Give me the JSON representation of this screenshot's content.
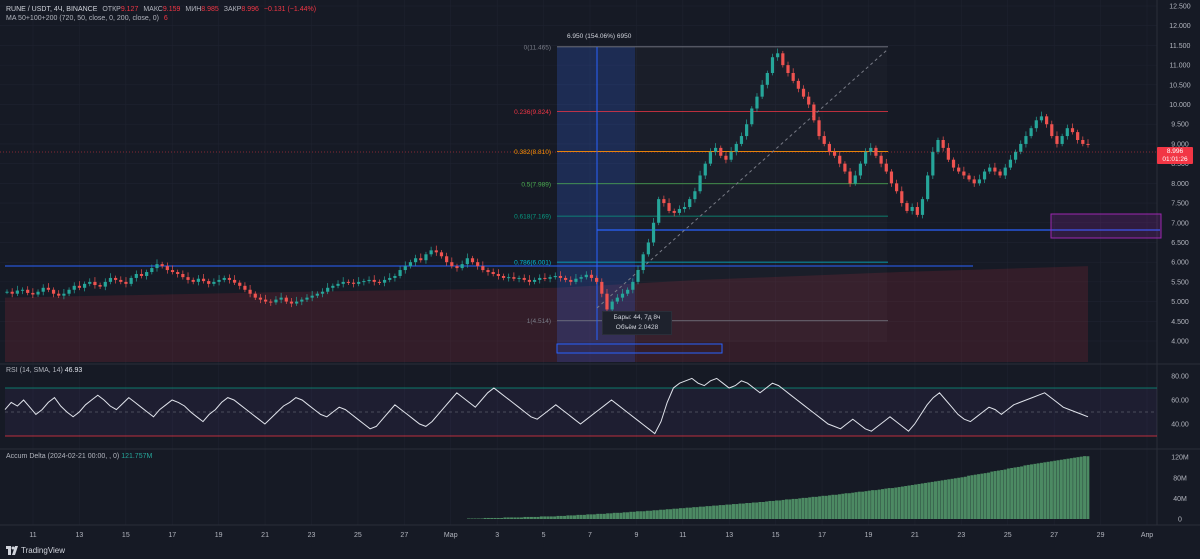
{
  "legend": {
    "pair": "RUNE / USDT, 4Ч, BINANCE",
    "open_label": "ОТКР",
    "open_value": "9.127",
    "high_label": "МАКС",
    "high_value": "9.159",
    "low_label": "МИН",
    "low_value": "8.985",
    "close_label": "ЗАКР",
    "close_value": "8.996",
    "change": "−0.131 (−1.44%)",
    "ma_label": "MA 50+100+200 (720, 50, close, 0, 200, close, 0)",
    "ma_extra": "6"
  },
  "price_axis": {
    "ticks": [
      "12.500",
      "12.000",
      "11.500",
      "11.000",
      "10.500",
      "10.000",
      "9.500",
      "9.000",
      "8.500",
      "8.000",
      "7.500",
      "7.000",
      "6.500",
      "6.000",
      "5.500",
      "5.000",
      "4.500",
      "4.000"
    ],
    "current_price": "8.996",
    "countdown": "01:01:26"
  },
  "rsi": {
    "label": "RSI (14, SMA, 14)",
    "value": "46.93",
    "ticks": [
      "80.00",
      "60.00",
      "40.00"
    ],
    "upper": 70,
    "lower": 30,
    "series": [
      52,
      58,
      55,
      60,
      54,
      48,
      52,
      58,
      62,
      55,
      50,
      46,
      50,
      56,
      60,
      64,
      60,
      55,
      52,
      57,
      62,
      58,
      54,
      50,
      46,
      52,
      56,
      60,
      58,
      55,
      50,
      46,
      42,
      48,
      52,
      58,
      62,
      60,
      56,
      52,
      48,
      44,
      40,
      45,
      50,
      55,
      58,
      62,
      60,
      56,
      52,
      48,
      46,
      50,
      54,
      52,
      48,
      44,
      40,
      36,
      38,
      44,
      50,
      56,
      52,
      48,
      44,
      40,
      38,
      42,
      48,
      54,
      60,
      66,
      62,
      58,
      54,
      60,
      66,
      70,
      66,
      62,
      58,
      54,
      50,
      46,
      44,
      48,
      52,
      56,
      52,
      48,
      44,
      40,
      44,
      48,
      52,
      56,
      60,
      56,
      52,
      48,
      44,
      40,
      36,
      32,
      42,
      58,
      70,
      74,
      76,
      78,
      74,
      72,
      76,
      78,
      74,
      70,
      72,
      76,
      74,
      70,
      66,
      70,
      74,
      72,
      68,
      64,
      60,
      56,
      52,
      48,
      44,
      40,
      38,
      36,
      40,
      44,
      40,
      36,
      34,
      38,
      42,
      46,
      42,
      38,
      34,
      40,
      48,
      56,
      62,
      66,
      60,
      54,
      48,
      44,
      42,
      46,
      50,
      54,
      52,
      48,
      52,
      56,
      58,
      60,
      62,
      64,
      66,
      62,
      58,
      54,
      52,
      50,
      48,
      46
    ]
  },
  "accum_delta": {
    "label": "Accum Delta (2024-02-21 00:00, , 0)",
    "value": "121.757M",
    "ticks": [
      "120M",
      "80M",
      "40M",
      "0"
    ],
    "series": [
      0,
      0,
      0,
      0,
      0,
      0,
      0,
      0,
      0,
      0,
      0,
      0,
      0,
      0,
      0,
      0,
      0,
      0,
      0,
      0,
      0,
      0,
      0,
      0,
      0,
      0,
      0,
      0,
      0,
      0,
      0,
      0,
      0,
      0,
      0,
      0,
      0,
      0,
      0,
      0,
      0,
      0,
      0,
      0,
      0,
      0,
      0,
      0,
      0,
      0,
      0,
      0,
      0,
      0,
      0,
      0,
      0,
      0,
      0,
      0,
      0,
      0,
      0,
      0,
      0,
      0,
      0,
      0,
      0,
      0,
      0,
      0,
      0,
      0,
      0,
      0,
      0,
      0,
      0,
      0,
      0,
      0,
      0,
      0,
      0,
      0,
      0,
      0,
      0,
      0,
      0,
      0,
      0,
      0,
      0,
      0,
      0,
      0,
      0,
      0,
      0,
      0,
      0,
      0,
      0,
      0,
      0,
      0,
      0,
      0,
      0,
      0,
      0,
      0,
      0,
      0,
      0,
      0,
      0,
      0,
      0,
      0,
      0,
      0,
      0,
      0,
      0,
      0,
      0,
      0,
      0,
      0,
      0,
      0,
      0,
      0,
      0,
      0,
      0,
      0,
      1,
      1,
      1,
      1,
      1,
      2,
      2,
      2,
      2,
      2,
      2,
      3,
      3,
      3,
      3,
      3,
      3,
      4,
      4,
      4,
      4,
      4,
      5,
      5,
      5,
      5,
      5,
      6,
      6,
      6,
      7,
      7,
      7,
      8,
      8,
      8,
      9,
      9,
      9,
      10,
      10,
      10,
      11,
      11,
      12,
      12,
      12,
      13,
      13,
      14,
      14,
      15,
      15,
      15,
      16,
      16,
      17,
      17,
      18,
      18,
      19,
      19,
      20,
      20,
      21,
      21,
      22,
      22,
      23,
      23,
      24,
      24,
      25,
      25,
      26,
      26,
      27,
      27,
      28,
      28,
      29,
      29,
      30,
      30,
      31,
      31,
      32,
      32,
      33,
      33,
      34,
      35,
      35,
      36,
      36,
      37,
      38,
      38,
      39,
      39,
      40,
      41,
      41,
      42,
      43,
      43,
      44,
      45,
      45,
      46,
      47,
      47,
      48,
      49,
      50,
      50,
      51,
      52,
      53,
      53,
      54,
      55,
      56,
      56,
      57,
      58,
      59,
      60,
      60,
      61,
      62,
      63,
      64,
      65,
      66,
      67,
      68,
      69,
      70,
      71,
      72,
      73,
      74,
      75,
      76,
      77,
      78,
      79,
      80,
      81,
      82,
      84,
      85,
      86,
      87,
      88,
      89,
      90,
      92,
      93,
      94,
      95,
      96,
      98,
      99,
      100,
      101,
      102,
      104,
      105,
      106,
      107,
      108,
      109,
      110,
      111,
      112,
      113,
      114,
      115,
      116,
      117,
      118,
      119,
      120,
      121,
      122,
      121.757
    ]
  },
  "time_axis": [
    "11",
    "13",
    "15",
    "17",
    "19",
    "21",
    "23",
    "25",
    "27",
    "Мар",
    "3",
    "5",
    "7",
    "9",
    "11",
    "13",
    "15",
    "17",
    "19",
    "21",
    "23",
    "25",
    "27",
    "29",
    "Апр"
  ],
  "fib": {
    "levels": [
      {
        "label": "0(11.465)",
        "price": 11.465,
        "color": "#787b86"
      },
      {
        "label": "0.236(9.824)",
        "price": 9.824,
        "color": "#f23645"
      },
      {
        "label": "0.382(8.810)",
        "price": 8.81,
        "color": "#ff9800"
      },
      {
        "label": "0.5(7.989)",
        "price": 7.989,
        "color": "#4caf50"
      },
      {
        "label": "0.618(7.169)",
        "price": 7.169,
        "color": "#089981"
      },
      {
        "label": "0.786(6.001)",
        "price": 6.001,
        "color": "#00bcd4"
      },
      {
        "label": "1(4.514)",
        "price": 4.514,
        "color": "#787b86"
      }
    ]
  },
  "measure": {
    "range_label": "6.950 (154.06%) 6950",
    "bars_text": "Бары: 44, 7д 8ч",
    "volume_text": "Объём 2.0428"
  },
  "brand": {
    "name": "TradingView"
  },
  "colors": {
    "up": "#26a69a",
    "down": "#ef5350",
    "background": "#161a25",
    "grid": "#1f2330",
    "hline": "#2962ff",
    "rsi_line": "#e0e3eb",
    "delta_bar": "#4c8a63"
  },
  "chart_data": {
    "type": "candlestick",
    "title": "RUNE / USDT, 4Ч, BINANCE",
    "ylim": [
      4.0,
      12.5
    ],
    "close_series": [
      5.25,
      5.2,
      5.28,
      5.3,
      5.22,
      5.18,
      5.25,
      5.35,
      5.3,
      5.2,
      5.15,
      5.2,
      5.3,
      5.4,
      5.35,
      5.45,
      5.5,
      5.42,
      5.38,
      5.5,
      5.6,
      5.55,
      5.5,
      5.45,
      5.6,
      5.7,
      5.65,
      5.75,
      5.85,
      5.95,
      5.9,
      5.8,
      5.75,
      5.7,
      5.62,
      5.55,
      5.5,
      5.58,
      5.52,
      5.45,
      5.5,
      5.55,
      5.6,
      5.55,
      5.48,
      5.4,
      5.3,
      5.2,
      5.1,
      5.05,
      5.0,
      4.98,
      5.05,
      5.1,
      5.0,
      4.95,
      5.0,
      5.05,
      5.1,
      5.15,
      5.2,
      5.25,
      5.35,
      5.4,
      5.45,
      5.5,
      5.48,
      5.45,
      5.5,
      5.52,
      5.55,
      5.5,
      5.48,
      5.55,
      5.6,
      5.65,
      5.8,
      5.9,
      6.0,
      6.1,
      6.05,
      6.2,
      6.3,
      6.25,
      6.15,
      6.0,
      5.9,
      5.85,
      5.95,
      6.1,
      6.0,
      5.9,
      5.8,
      5.75,
      5.7,
      5.65,
      5.6,
      5.62,
      5.58,
      5.6,
      5.55,
      5.5,
      5.55,
      5.6,
      5.58,
      5.62,
      5.65,
      5.6,
      5.55,
      5.5,
      5.58,
      5.62,
      5.68,
      5.6,
      5.5,
      5.2,
      4.8,
      5.0,
      5.1,
      5.2,
      5.3,
      5.5,
      5.8,
      6.2,
      6.5,
      7.0,
      7.6,
      7.5,
      7.3,
      7.25,
      7.35,
      7.4,
      7.6,
      7.8,
      8.2,
      8.5,
      8.8,
      8.9,
      8.7,
      8.6,
      8.8,
      9.0,
      9.2,
      9.5,
      9.9,
      10.2,
      10.5,
      10.8,
      11.2,
      11.3,
      11.0,
      10.8,
      10.6,
      10.4,
      10.2,
      10.0,
      9.6,
      9.2,
      9.0,
      8.8,
      8.7,
      8.5,
      8.3,
      8.0,
      8.2,
      8.5,
      8.8,
      8.9,
      8.7,
      8.5,
      8.3,
      8.0,
      7.8,
      7.5,
      7.3,
      7.4,
      7.2,
      7.6,
      8.2,
      8.8,
      9.1,
      8.9,
      8.6,
      8.4,
      8.3,
      8.2,
      8.1,
      8.0,
      8.1,
      8.3,
      8.4,
      8.3,
      8.2,
      8.4,
      8.6,
      8.8,
      9.0,
      9.2,
      9.4,
      9.6,
      9.7,
      9.5,
      9.2,
      9.0,
      9.2,
      9.4,
      9.3,
      9.1,
      9.0,
      8.996
    ]
  }
}
